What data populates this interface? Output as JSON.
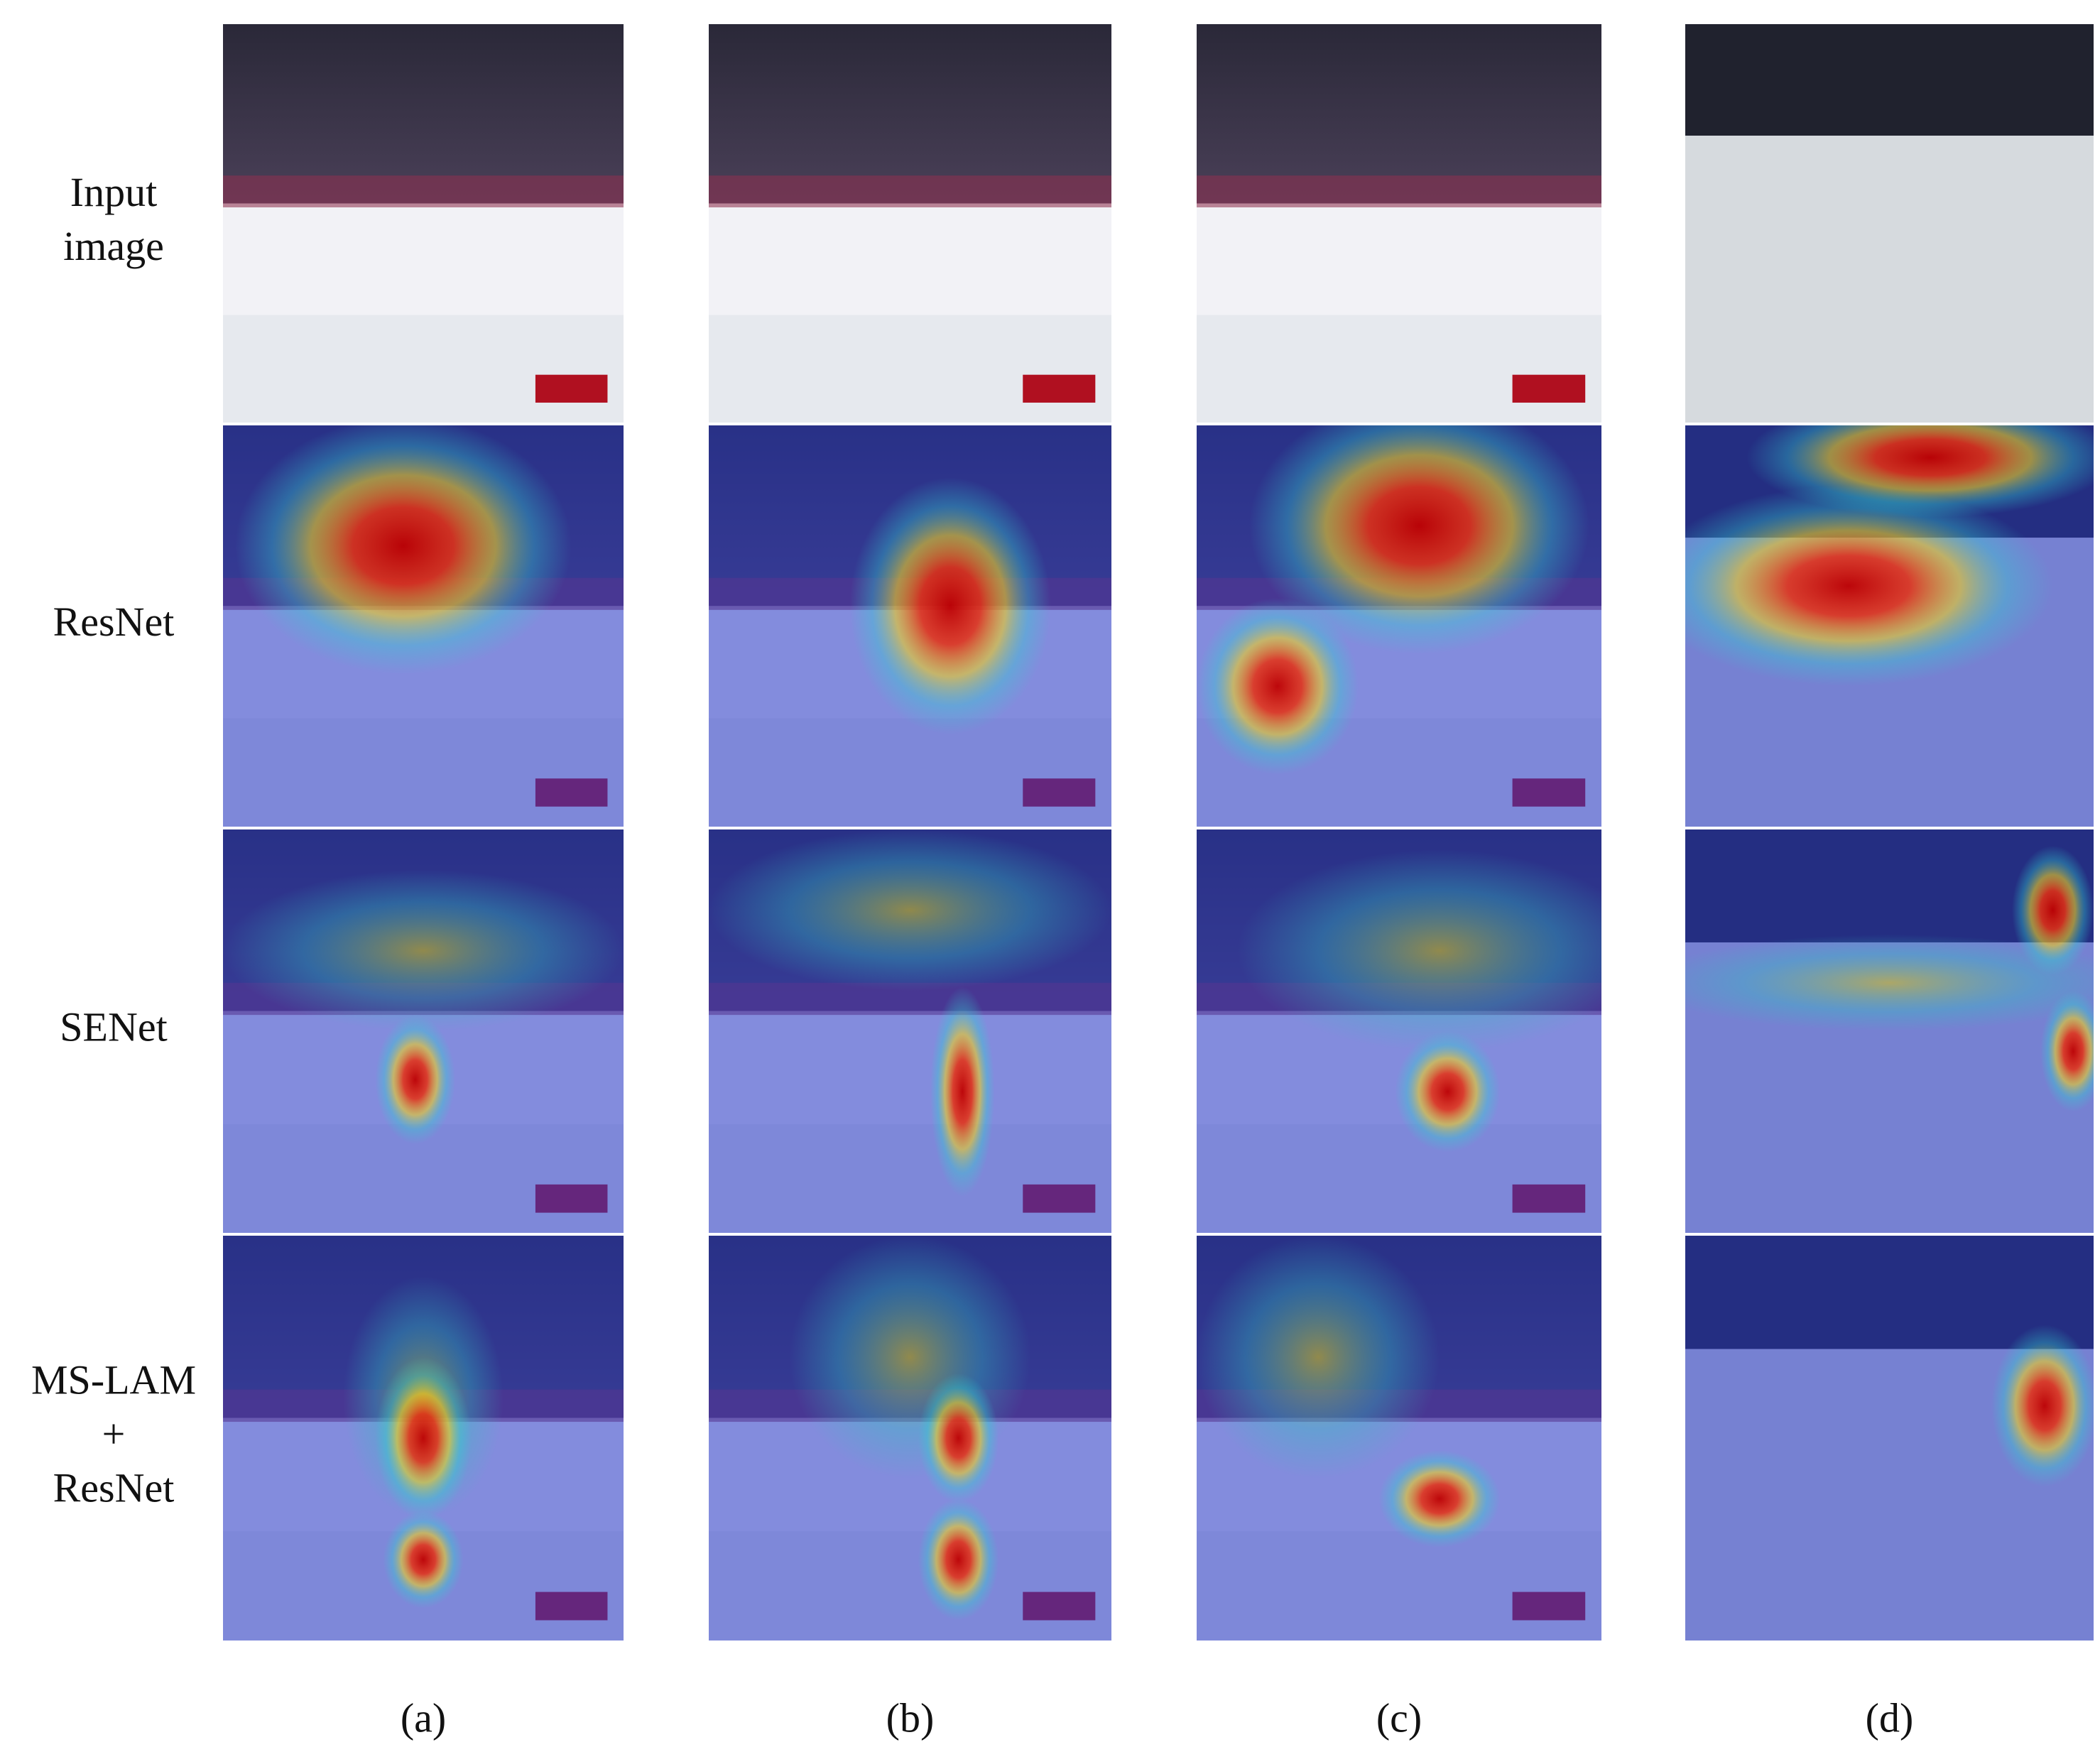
{
  "figure": {
    "row_labels": [
      [
        "Input",
        "image"
      ],
      [
        "ResNet"
      ],
      [
        "SENet"
      ],
      [
        "MS-LAM",
        "+",
        "ResNet"
      ]
    ],
    "column_labels": [
      "(a)",
      "(b)",
      "(c)",
      "(d)"
    ]
  }
}
